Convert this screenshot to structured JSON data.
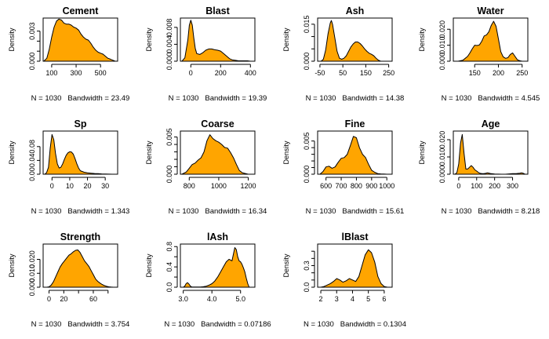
{
  "figure": {
    "fill_color": "#FFA500",
    "line_color": "#000000"
  },
  "chart_data": [
    {
      "type": "area",
      "title": "Cement",
      "xlabel": "N = 1030   Bandwidth = 23.49",
      "ylabel": "Density",
      "xlim": [
        30,
        640
      ],
      "ylim": [
        0,
        0.0043
      ],
      "xticks": [
        100,
        300,
        500
      ],
      "xtick_labels": [
        "100",
        "300",
        "500"
      ],
      "yticks": [
        0,
        0.001,
        0.002,
        0.003
      ],
      "ytick_labels": [
        "0.000",
        "",
        "",
        "0.003"
      ],
      "x": [
        35,
        60,
        80,
        100,
        120,
        140,
        160,
        180,
        200,
        220,
        240,
        260,
        280,
        300,
        320,
        340,
        360,
        380,
        400,
        420,
        440,
        460,
        480,
        500,
        520,
        540,
        560,
        580,
        600,
        620
      ],
      "y": [
        0,
        0.0003,
        0.0012,
        0.0024,
        0.0034,
        0.004,
        0.0042,
        0.0041,
        0.0038,
        0.0037,
        0.0037,
        0.0036,
        0.0034,
        0.0033,
        0.0031,
        0.0027,
        0.0024,
        0.0022,
        0.0021,
        0.0018,
        0.0014,
        0.0011,
        0.0009,
        0.0008,
        0.0007,
        0.0005,
        0.0003,
        0.0002,
        0.0001,
        0
      ]
    },
    {
      "type": "area",
      "title": "Blast",
      "xlabel": "N = 1030   Bandwidth = 19.39",
      "ylabel": "Density",
      "xlim": [
        -70,
        430
      ],
      "ylim": [
        0,
        0.0102
      ],
      "xticks": [
        0,
        200,
        400
      ],
      "xtick_labels": [
        "0",
        "200",
        "400"
      ],
      "yticks": [
        0,
        0.004,
        0.008
      ],
      "ytick_labels": [
        "0.000",
        "0.004",
        "0.008"
      ],
      "x": [
        -60,
        -40,
        -20,
        -10,
        0,
        10,
        20,
        30,
        40,
        60,
        80,
        100,
        120,
        140,
        160,
        180,
        200,
        220,
        240,
        260,
        280,
        300,
        320,
        340,
        360,
        380,
        400
      ],
      "y": [
        0,
        0.0008,
        0.005,
        0.0085,
        0.0097,
        0.0085,
        0.0055,
        0.003,
        0.0018,
        0.0016,
        0.002,
        0.0026,
        0.0029,
        0.0029,
        0.0027,
        0.0026,
        0.0024,
        0.0018,
        0.0012,
        0.0006,
        0.0003,
        0.0002,
        0.0001,
        0.0001,
        0.0001,
        0.0001,
        0
      ]
    },
    {
      "type": "area",
      "title": "Ash",
      "xlabel": "N = 1030   Bandwidth = 14.38",
      "ylabel": "Density",
      "xlim": [
        -60,
        265
      ],
      "ylim": [
        0,
        0.0175
      ],
      "xticks": [
        -50,
        50,
        150,
        250
      ],
      "xtick_labels": [
        "-50",
        "50",
        "150",
        "250"
      ],
      "yticks": [
        0,
        0.005,
        0.01,
        0.015
      ],
      "ytick_labels": [
        "0.000",
        "",
        "",
        "0.015"
      ],
      "x": [
        -45,
        -35,
        -25,
        -15,
        -5,
        0,
        5,
        15,
        25,
        35,
        45,
        55,
        65,
        75,
        85,
        95,
        105,
        115,
        125,
        135,
        145,
        155,
        165,
        175,
        185,
        195,
        205,
        215
      ],
      "y": [
        0,
        0.0008,
        0.0045,
        0.011,
        0.0155,
        0.0165,
        0.015,
        0.0095,
        0.004,
        0.0012,
        0.0008,
        0.0012,
        0.0022,
        0.004,
        0.0058,
        0.007,
        0.0078,
        0.0078,
        0.0072,
        0.0062,
        0.005,
        0.004,
        0.0032,
        0.0028,
        0.0022,
        0.0012,
        0.0004,
        0
      ]
    },
    {
      "type": "area",
      "title": "Water",
      "xlabel": "N = 1030   Bandwidth = 4.545",
      "ylabel": "Density",
      "xlim": [
        105,
        262
      ],
      "ylim": [
        0,
        0.027
      ],
      "xticks": [
        150,
        200,
        250
      ],
      "xtick_labels": [
        "150",
        "200",
        "250"
      ],
      "yticks": [
        0,
        0.01,
        0.02
      ],
      "ytick_labels": [
        "0.000",
        "0.010",
        "0.020"
      ],
      "x": [
        115,
        125,
        135,
        140,
        145,
        150,
        155,
        160,
        165,
        170,
        175,
        180,
        185,
        190,
        195,
        200,
        205,
        210,
        215,
        220,
        225,
        230,
        235,
        240,
        245,
        250
      ],
      "y": [
        0,
        0.0006,
        0.003,
        0.0052,
        0.0078,
        0.01,
        0.0098,
        0.0102,
        0.0125,
        0.0158,
        0.0165,
        0.0185,
        0.0225,
        0.025,
        0.0218,
        0.014,
        0.006,
        0.0028,
        0.0018,
        0.0022,
        0.0042,
        0.0052,
        0.003,
        0.0009,
        0.0003,
        0
      ]
    },
    {
      "type": "area",
      "title": "Sp",
      "xlabel": "N = 1030   Bandwidth = 1.343",
      "ylabel": "Density",
      "xlim": [
        -5,
        37
      ],
      "ylim": [
        0,
        0.125
      ],
      "xticks": [
        0,
        10,
        20,
        30
      ],
      "xtick_labels": [
        "0",
        "10",
        "20",
        "30"
      ],
      "yticks": [
        0,
        0.04,
        0.08
      ],
      "ytick_labels": [
        "0.00",
        "0.04",
        "0.08"
      ],
      "x": [
        -4,
        -3,
        -2,
        -1,
        0,
        1,
        2,
        3,
        4,
        5,
        6,
        7,
        8,
        9,
        10,
        11,
        12,
        13,
        14,
        15,
        16,
        18,
        20,
        22,
        24,
        26,
        28,
        30,
        32,
        34
      ],
      "y": [
        0,
        0.005,
        0.02,
        0.075,
        0.115,
        0.1,
        0.06,
        0.03,
        0.018,
        0.02,
        0.03,
        0.043,
        0.055,
        0.062,
        0.065,
        0.064,
        0.058,
        0.045,
        0.03,
        0.018,
        0.01,
        0.006,
        0.004,
        0.003,
        0.002,
        0.0015,
        0.001,
        0.0005,
        0.0002,
        0
      ]
    },
    {
      "type": "area",
      "title": "Coarse",
      "xlabel": "N = 1030   Bandwidth = 16.34",
      "ylabel": "Density",
      "xlim": [
        740,
        1245
      ],
      "ylim": [
        0,
        0.0058
      ],
      "xticks": [
        800,
        1000,
        1200
      ],
      "xtick_labels": [
        "800",
        "1000",
        "1200"
      ],
      "yticks": [
        0,
        0.001,
        0.002,
        0.003,
        0.004,
        0.005
      ],
      "ytick_labels": [
        "0.000",
        "",
        "",
        "",
        "",
        "0.005"
      ],
      "x": [
        750,
        780,
        800,
        820,
        840,
        860,
        880,
        900,
        920,
        940,
        960,
        980,
        1000,
        1020,
        1040,
        1060,
        1080,
        1100,
        1120,
        1140,
        1160,
        1180,
        1200
      ],
      "y": [
        0,
        0.0003,
        0.0008,
        0.0013,
        0.0015,
        0.0019,
        0.0022,
        0.003,
        0.0045,
        0.0053,
        0.0048,
        0.0045,
        0.0043,
        0.004,
        0.0036,
        0.0035,
        0.0029,
        0.0022,
        0.0013,
        0.0005,
        0.0002,
        0.0001,
        0
      ]
    },
    {
      "type": "area",
      "title": "Fine",
      "xlabel": "N = 1030   Bandwidth = 15.61",
      "ylabel": "Density",
      "xlim": [
        545,
        1035
      ],
      "ylim": [
        0,
        0.0065
      ],
      "xticks": [
        600,
        700,
        800,
        900,
        1000
      ],
      "xtick_labels": [
        "600",
        "700",
        "800",
        "900",
        "1000"
      ],
      "yticks": [
        0,
        0.001,
        0.002,
        0.003,
        0.004,
        0.005
      ],
      "ytick_labels": [
        "0.000",
        "",
        "",
        "",
        "",
        "0.005"
      ],
      "x": [
        560,
        580,
        600,
        620,
        640,
        660,
        680,
        700,
        720,
        740,
        760,
        780,
        800,
        820,
        840,
        860,
        880,
        900,
        920,
        940,
        960,
        980,
        1000
      ],
      "y": [
        0,
        0.0004,
        0.0011,
        0.0012,
        0.0009,
        0.0011,
        0.0018,
        0.0024,
        0.0025,
        0.003,
        0.0043,
        0.0057,
        0.0055,
        0.004,
        0.003,
        0.0025,
        0.0015,
        0.0006,
        0.0003,
        0.0001,
        5e-05,
        2e-05,
        0
      ]
    },
    {
      "type": "area",
      "title": "Age",
      "xlabel": "N = 1030   Bandwidth = 8.218",
      "ylabel": "Density",
      "xlim": [
        -30,
        385
      ],
      "ylim": [
        0,
        0.025
      ],
      "xticks": [
        0,
        100,
        200,
        300
      ],
      "xtick_labels": [
        "0",
        "100",
        "200",
        "300"
      ],
      "yticks": [
        0,
        0.01,
        0.02
      ],
      "ytick_labels": [
        "0.000",
        "0.010",
        "0.020"
      ],
      "x": [
        -20,
        -10,
        0,
        10,
        20,
        30,
        40,
        50,
        60,
        70,
        80,
        90,
        100,
        110,
        120,
        130,
        140,
        150,
        160,
        170,
        180,
        200,
        220,
        240,
        260,
        280,
        300,
        320,
        340,
        350,
        360,
        370
      ],
      "y": [
        0,
        0.001,
        0.006,
        0.018,
        0.023,
        0.012,
        0.003,
        0.003,
        0.004,
        0.005,
        0.004,
        0.0025,
        0.0018,
        0.001,
        0.0005,
        0.0003,
        0.0003,
        0.0005,
        0.0008,
        0.0006,
        0.0003,
        0.0001,
        5e-05,
        2e-05,
        2e-05,
        0.0002,
        0.0003,
        0.0003,
        0.0006,
        0.0008,
        0.0005,
        0
      ]
    },
    {
      "type": "area",
      "title": "Strength",
      "xlabel": "N = 1030   Bandwidth = 3.754",
      "ylabel": "Density",
      "xlim": [
        -8,
        93
      ],
      "ylim": [
        0,
        0.031
      ],
      "xticks": [
        0,
        20,
        40,
        60,
        80
      ],
      "xtick_labels": [
        "0",
        "20",
        "",
        "60",
        ""
      ],
      "yticks": [
        0,
        0.01,
        0.02
      ],
      "ytick_labels": [
        "0.000",
        "0.010",
        "0.020"
      ],
      "x": [
        -3,
        0,
        3,
        6,
        9,
        12,
        15,
        18,
        21,
        24,
        27,
        30,
        33,
        36,
        39,
        42,
        45,
        48,
        51,
        54,
        57,
        60,
        63,
        66,
        69,
        72,
        75,
        78,
        81,
        84,
        87
      ],
      "y": [
        0,
        0.0003,
        0.0015,
        0.004,
        0.0075,
        0.011,
        0.0145,
        0.017,
        0.019,
        0.021,
        0.023,
        0.024,
        0.0255,
        0.0265,
        0.0268,
        0.025,
        0.022,
        0.019,
        0.017,
        0.015,
        0.012,
        0.009,
        0.006,
        0.0042,
        0.003,
        0.002,
        0.0012,
        0.0007,
        0.0003,
        0.0001,
        0
      ]
    },
    {
      "type": "area",
      "title": "lAsh",
      "xlabel": "N = 1030   Bandwidth = 0.07186",
      "ylabel": "Density",
      "xlim": [
        2.9,
        5.5
      ],
      "ylim": [
        0,
        0.85
      ],
      "xticks": [
        3.0,
        4.0,
        5.0
      ],
      "xtick_labels": [
        "3.0",
        "4.0",
        "5.0"
      ],
      "yticks": [
        0,
        0.2,
        0.4,
        0.6,
        0.8
      ],
      "ytick_labels": [
        "0.0",
        "",
        "0.4",
        "",
        "0.8"
      ],
      "x": [
        3.0,
        3.05,
        3.1,
        3.15,
        3.2,
        3.25,
        3.3,
        3.4,
        3.5,
        3.6,
        3.7,
        3.8,
        3.9,
        4.0,
        4.1,
        4.2,
        4.3,
        4.4,
        4.5,
        4.6,
        4.7,
        4.75,
        4.8,
        4.85,
        4.9,
        4.95,
        5.0,
        5.05,
        5.1,
        5.15,
        5.2,
        5.25,
        5.3
      ],
      "y": [
        0,
        0.02,
        0.07,
        0.09,
        0.06,
        0.02,
        0.005,
        0.003,
        0.003,
        0.005,
        0.01,
        0.02,
        0.04,
        0.07,
        0.12,
        0.2,
        0.3,
        0.4,
        0.5,
        0.55,
        0.52,
        0.65,
        0.78,
        0.74,
        0.6,
        0.52,
        0.5,
        0.45,
        0.38,
        0.3,
        0.18,
        0.07,
        0
      ]
    },
    {
      "type": "area",
      "title": "lBlast",
      "xlabel": "N = 1030   Bandwidth = 0.1304",
      "ylabel": "Density",
      "xlim": [
        1.8,
        6.5
      ],
      "ylim": [
        0,
        0.6
      ],
      "xticks": [
        2,
        3,
        4,
        5,
        6
      ],
      "xtick_labels": [
        "2",
        "3",
        "4",
        "5",
        "6"
      ],
      "yticks": [
        0,
        0.1,
        0.2,
        0.3,
        0.4,
        0.5
      ],
      "ytick_labels": [
        "0.0",
        "",
        "",
        "0.3",
        "",
        ""
      ],
      "x": [
        2.0,
        2.2,
        2.4,
        2.6,
        2.8,
        3.0,
        3.2,
        3.4,
        3.6,
        3.8,
        4.0,
        4.2,
        4.4,
        4.6,
        4.8,
        5.0,
        5.2,
        5.4,
        5.6,
        5.8,
        6.0,
        6.2
      ],
      "y": [
        0,
        0.01,
        0.03,
        0.05,
        0.08,
        0.12,
        0.1,
        0.07,
        0.09,
        0.12,
        0.1,
        0.08,
        0.15,
        0.3,
        0.45,
        0.52,
        0.48,
        0.35,
        0.15,
        0.05,
        0.01,
        0
      ]
    }
  ]
}
